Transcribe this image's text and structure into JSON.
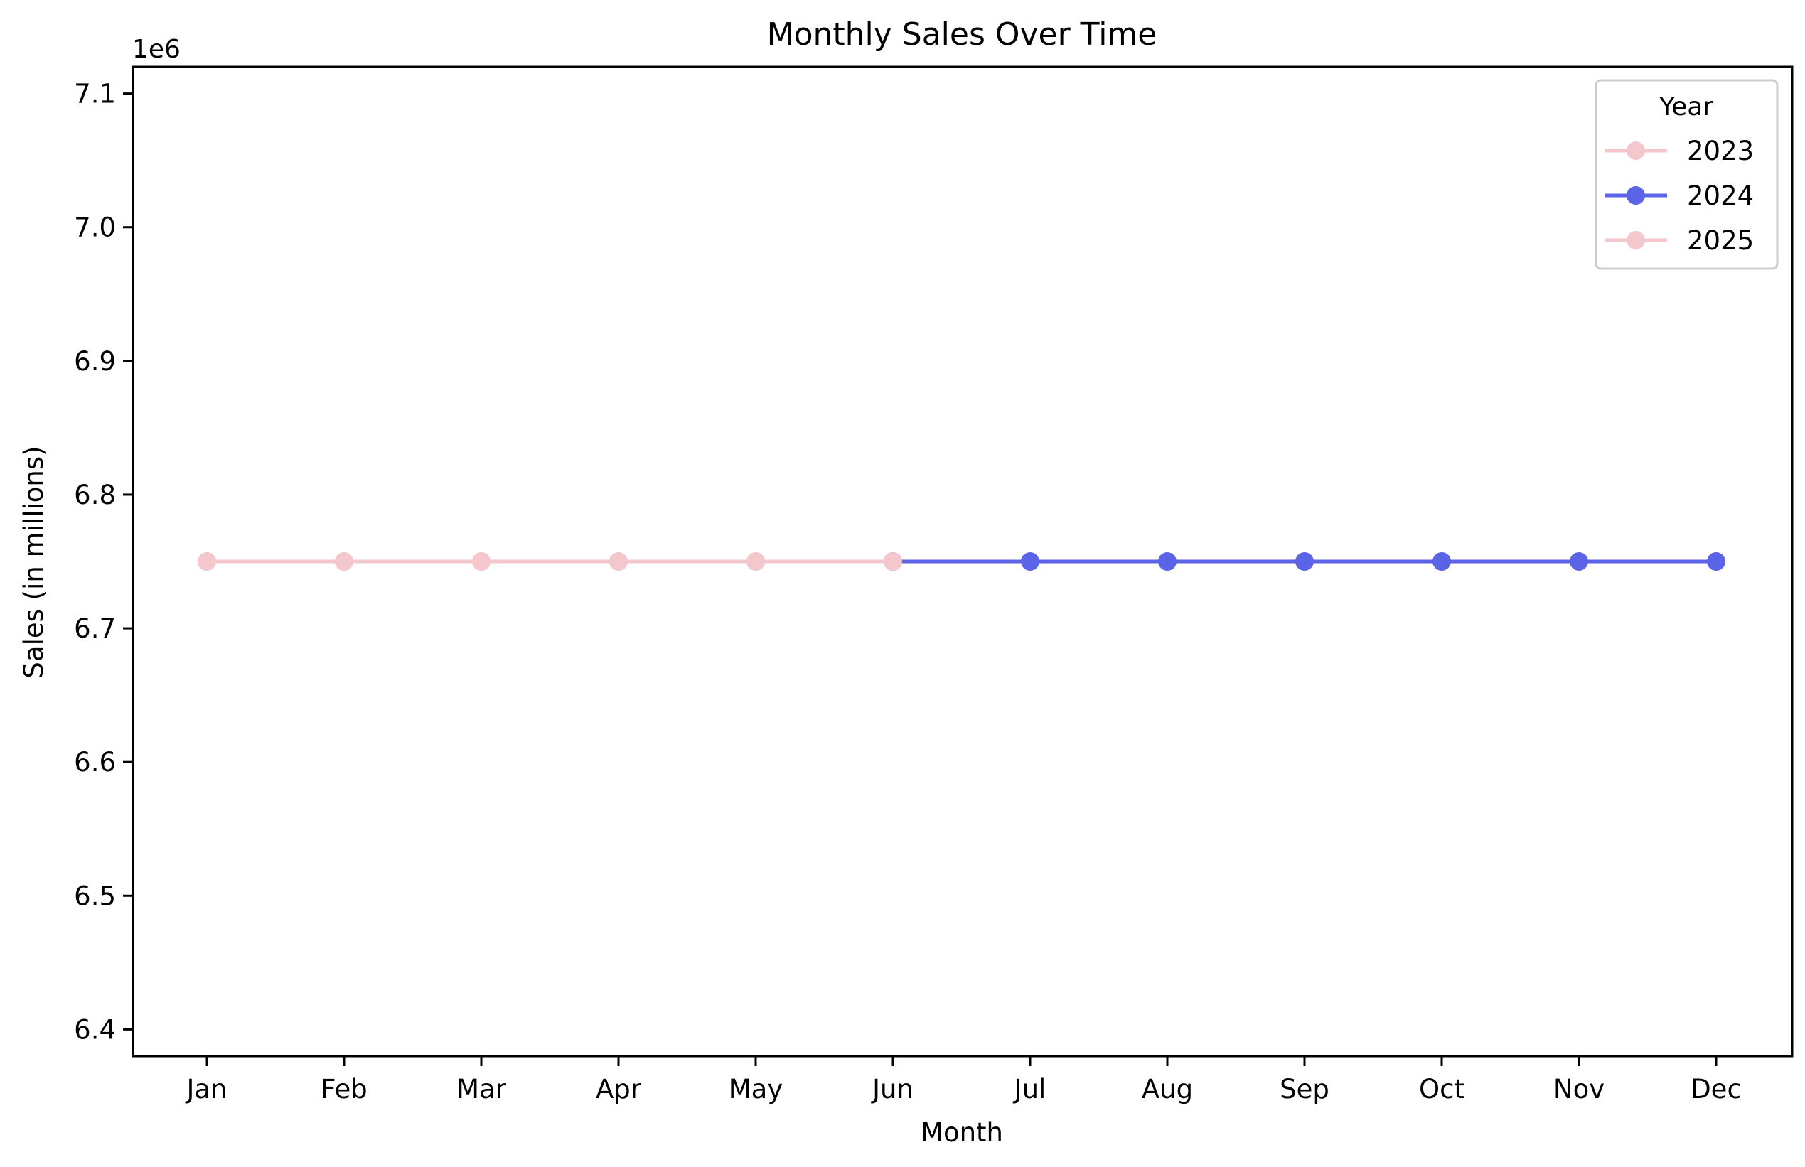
{
  "chart_data": {
    "type": "line",
    "title": "Monthly Sales Over Time",
    "xlabel": "Month",
    "ylabel": "Sales (in millions)",
    "y_offset_label": "1e6",
    "categories": [
      "Jan",
      "Feb",
      "Mar",
      "Apr",
      "May",
      "Jun",
      "Jul",
      "Aug",
      "Sep",
      "Oct",
      "Nov",
      "Dec"
    ],
    "ylim": [
      6.38,
      7.12
    ],
    "yticks": [
      "6.4",
      "6.5",
      "6.6",
      "6.7",
      "6.8",
      "6.9",
      "7.0",
      "7.1"
    ],
    "ytick_values": [
      6.4,
      6.5,
      6.6,
      6.7,
      6.8,
      6.9,
      7.0,
      7.1
    ],
    "legend": {
      "title": "Year",
      "position": "top-right"
    },
    "grid": false,
    "series": [
      {
        "name": "2023",
        "color": "#f4c7cd",
        "marker": "circle",
        "points": [
          [
            "Jan",
            6.75
          ],
          [
            "Feb",
            6.75
          ],
          [
            "Mar",
            6.75
          ],
          [
            "Apr",
            6.75
          ],
          [
            "May",
            6.75
          ],
          [
            "Jun",
            6.75
          ]
        ]
      },
      {
        "name": "2024",
        "color": "#5b63e6",
        "marker": "circle",
        "points": [
          [
            "Jun",
            6.75
          ],
          [
            "Jul",
            6.75
          ],
          [
            "Aug",
            6.75
          ],
          [
            "Sep",
            6.75
          ],
          [
            "Oct",
            6.75
          ],
          [
            "Nov",
            6.75
          ],
          [
            "Dec",
            6.75
          ]
        ]
      },
      {
        "name": "2025",
        "color": "#f4c7cd",
        "marker": "circle",
        "points": [
          [
            "Jan",
            6.75
          ],
          [
            "Feb",
            6.75
          ],
          [
            "Mar",
            6.75
          ],
          [
            "Apr",
            6.75
          ],
          [
            "May",
            6.75
          ],
          [
            "Jun",
            6.75
          ]
        ]
      }
    ]
  }
}
